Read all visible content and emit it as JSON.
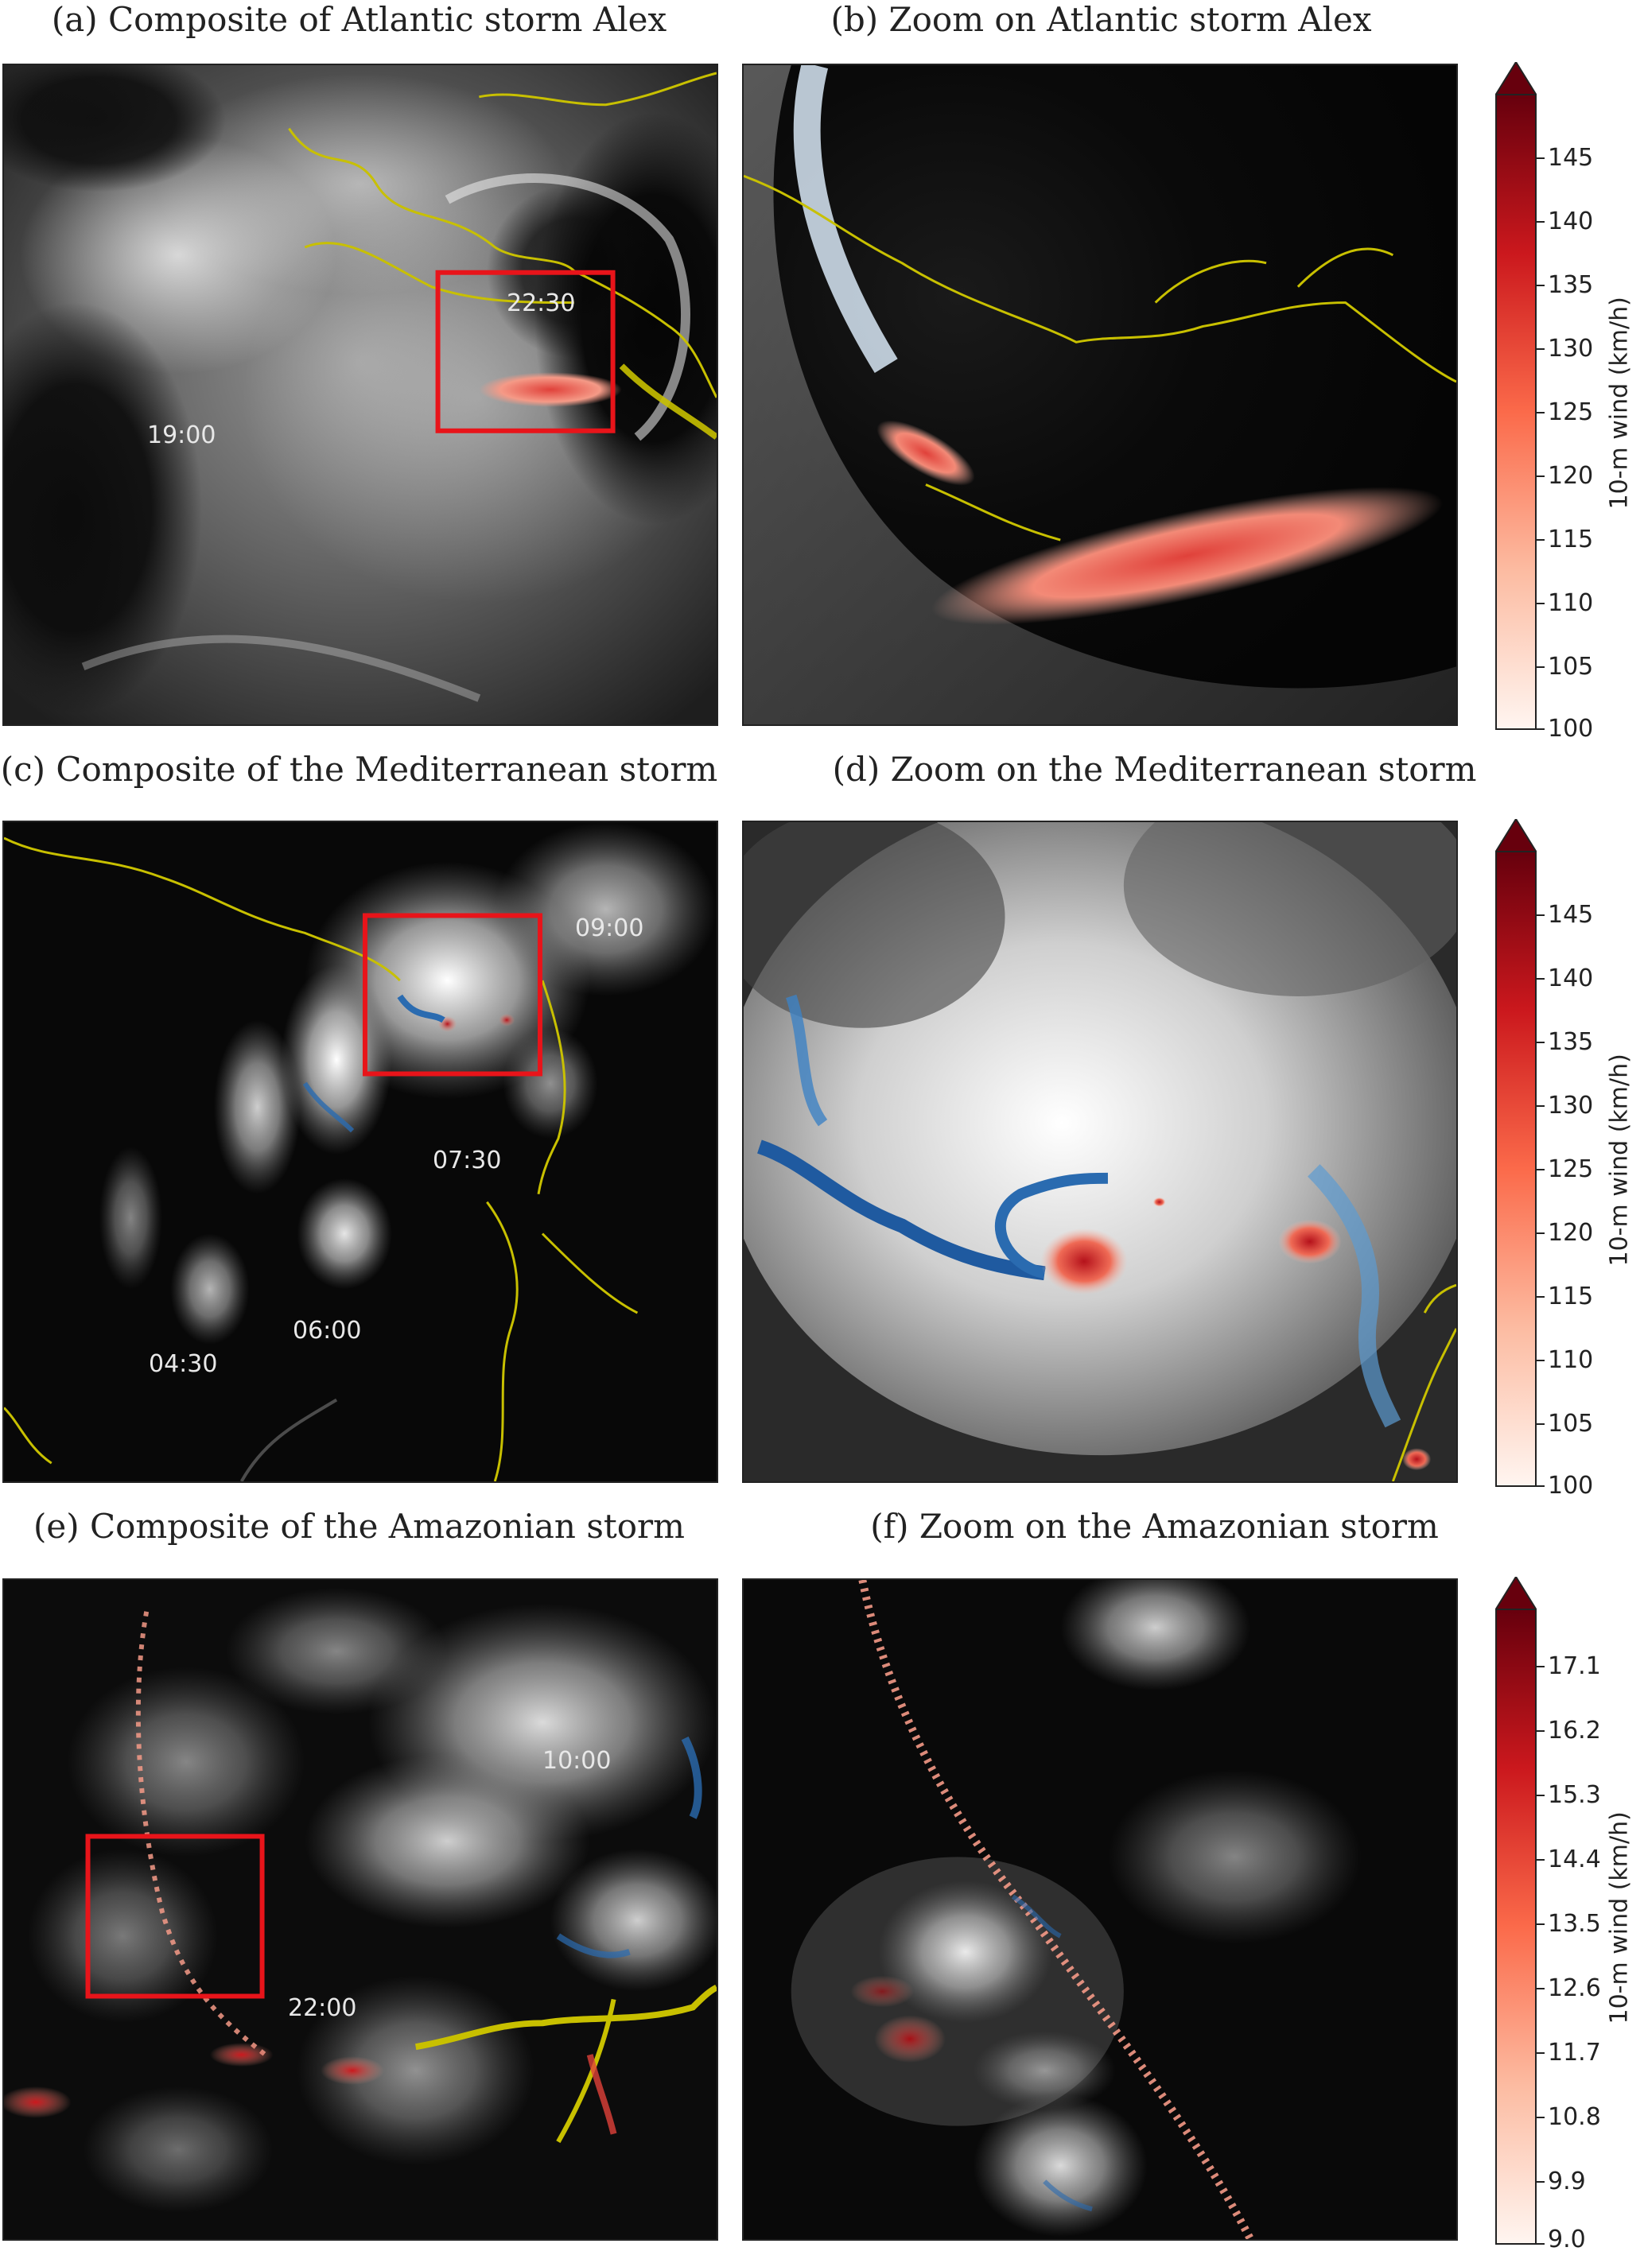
{
  "panels": {
    "a": {
      "caption": "(a) Composite of Atlantic storm Alex",
      "labels": [
        "19:00",
        "22:30"
      ]
    },
    "b": {
      "caption": "(b) Zoom on Atlantic storm Alex"
    },
    "c": {
      "caption": "(c) Composite of the Mediterranean storm",
      "labels": [
        "09:00",
        "07:30",
        "06:00",
        "04:30"
      ]
    },
    "d": {
      "caption": "(d) Zoom on the Mediterranean storm"
    },
    "e": {
      "caption": "(e) Composite of the Amazonian storm",
      "labels": [
        "10:00",
        "22:00"
      ]
    },
    "f": {
      "caption": "(f) Zoom on the Amazonian storm"
    }
  },
  "colorbars": [
    {
      "title": "10-m wind (km/h)",
      "ticks": [
        "145",
        "140",
        "135",
        "130",
        "125",
        "120",
        "115",
        "110",
        "105",
        "100"
      ]
    },
    {
      "title": "10-m wind (km/h)",
      "ticks": [
        "145",
        "140",
        "135",
        "130",
        "125",
        "120",
        "115",
        "110",
        "105",
        "100"
      ]
    },
    {
      "title": "10-m wind (km/h)",
      "ticks": [
        "17.1",
        "16.2",
        "15.3",
        "14.4",
        "13.5",
        "12.6",
        "11.7",
        "10.8",
        "9.9",
        "9.0"
      ]
    }
  ],
  "colors": {
    "cmap_low": "#fff5f0",
    "cmap_mid": "#fb6a4a",
    "cmap_high": "#67000d",
    "coastline": "#c8c000",
    "zoom_box": "#e8141a",
    "cold_blue": "#2a6bb0"
  }
}
